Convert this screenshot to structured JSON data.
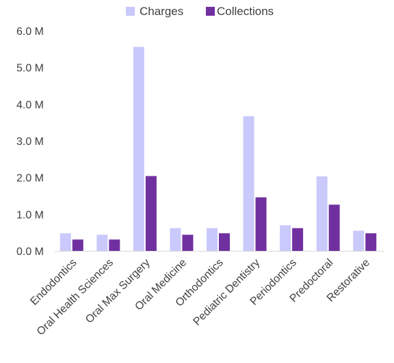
{
  "chart_data": {
    "type": "bar",
    "categories": [
      "Endodontics",
      "Oral Health Sciences",
      "Oral Max Surgery",
      "Oral Medicine",
      "Orthodontics",
      "Pediatric Dentistry",
      "Periodontics",
      "Predoctoral",
      "Restorative"
    ],
    "series": [
      {
        "name": "Charges",
        "color": "#c9c9fb",
        "values": [
          0.48,
          0.44,
          5.56,
          0.62,
          0.62,
          3.67,
          0.7,
          2.03,
          0.55
        ]
      },
      {
        "name": "Collections",
        "color": "#7030a0",
        "values": [
          0.31,
          0.31,
          2.04,
          0.44,
          0.48,
          1.46,
          0.62,
          1.26,
          0.48
        ]
      }
    ],
    "yticks": [
      "0.0 M",
      "1.0 M",
      "2.0 M",
      "3.0 M",
      "4.0 M",
      "5.0 M",
      "6.0 M"
    ],
    "ylim": [
      0,
      6
    ],
    "grid": false,
    "legend_position": "top-center",
    "title": "",
    "xlabel": "",
    "ylabel": ""
  }
}
